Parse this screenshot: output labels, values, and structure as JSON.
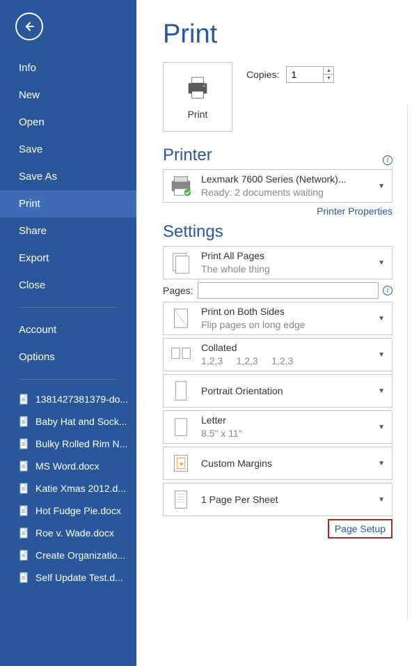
{
  "colors": {
    "brand": "#2a579a",
    "sidebar_bg": "#2a579a",
    "active_bg": "#3e6db5",
    "border": "#c8c8c8",
    "highlight_border": "#a0302a"
  },
  "sidebar": {
    "nav": [
      {
        "label": "Info"
      },
      {
        "label": "New"
      },
      {
        "label": "Open"
      },
      {
        "label": "Save"
      },
      {
        "label": "Save As"
      },
      {
        "label": "Print"
      },
      {
        "label": "Share"
      },
      {
        "label": "Export"
      },
      {
        "label": "Close"
      }
    ],
    "lower": [
      {
        "label": "Account"
      },
      {
        "label": "Options"
      }
    ],
    "recent": [
      "1381427381379-do...",
      "Baby Hat and Sock...",
      "Bulky Rolled Rim N...",
      "MS Word.docx",
      "Katie Xmas 2012.d...",
      "Hot Fudge Pie.docx",
      "Roe v. Wade.docx",
      "Create Organizatio...",
      "Self Update Test.d..."
    ]
  },
  "title": "Print",
  "printButton": "Print",
  "copiesLabel": "Copies:",
  "copiesValue": "1",
  "printerHeading": "Printer",
  "printer": {
    "name": "Lexmark 7600 Series (Network)...",
    "status": "Ready: 2 documents waiting"
  },
  "printerPropertiesLink": "Printer Properties",
  "settingsHeading": "Settings",
  "settings": {
    "s1": {
      "title": "Print All Pages",
      "sub": "The whole thing"
    },
    "pagesLabel": "Pages:",
    "pagesValue": "",
    "s2": {
      "title": "Print on Both Sides",
      "sub": "Flip pages on long edge"
    },
    "s3": {
      "title": "Collated",
      "sub": "1,2,3     1,2,3     1,2,3"
    },
    "s4": {
      "title": "Portrait Orientation"
    },
    "s5": {
      "title": "Letter",
      "sub": "8.5\" x 11\""
    },
    "s6": {
      "title": "Custom Margins"
    },
    "s7": {
      "title": "1 Page Per Sheet"
    }
  },
  "pageSetupLink": "Page Setup"
}
